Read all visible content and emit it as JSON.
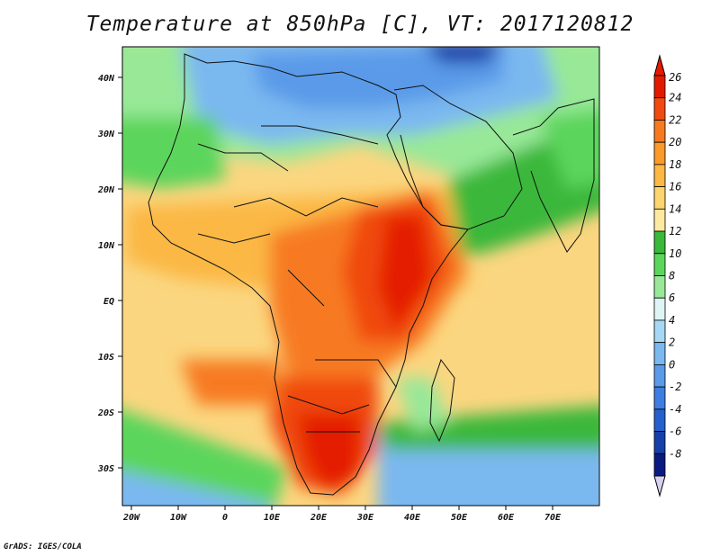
{
  "title": "Temperature at 850hPa [C], VT: 2017120812",
  "credit": "GrADS: IGES/COLA",
  "map": {
    "lon_ticks": [
      "20W",
      "10W",
      "0",
      "10E",
      "20E",
      "30E",
      "40E",
      "50E",
      "60E",
      "70E"
    ],
    "lat_ticks": [
      "40N",
      "30N",
      "20N",
      "10N",
      "EQ",
      "10S",
      "20S",
      "30S"
    ]
  },
  "colorbar": {
    "labels": [
      "26",
      "24",
      "22",
      "20",
      "18",
      "16",
      "14",
      "12",
      "10",
      "8",
      "6",
      "4",
      "2",
      "0",
      "-2",
      "-4",
      "-6",
      "-8"
    ],
    "colors": [
      "#e41a00",
      "#f04a10",
      "#f77a20",
      "#fa9a2a",
      "#fbb845",
      "#fcd470",
      "#fdeaa0",
      "#3ab83a",
      "#5cd55c",
      "#98e898",
      "#dff5f5",
      "#a6d8f5",
      "#7ab8f0",
      "#5a9ae8",
      "#3e7ee0",
      "#2560cc",
      "#1540a8",
      "#0a1a80"
    ],
    "top_cap": "#e41a00",
    "bottom_cap": "#d8d0f0"
  }
}
